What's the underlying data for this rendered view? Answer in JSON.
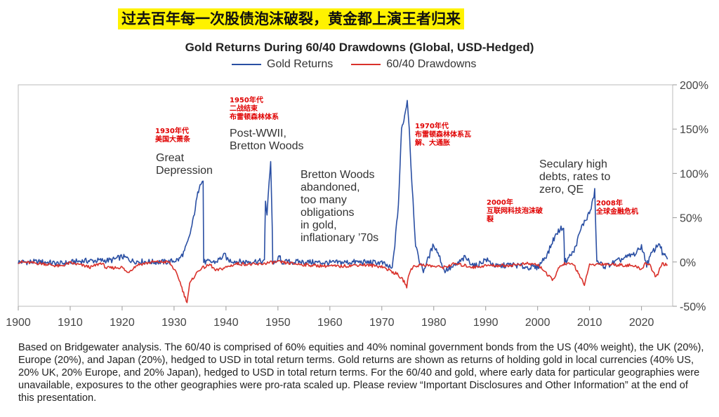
{
  "banner": "过去百年每一次股债泡沫破裂，黄金都上演王者归来",
  "footnote": "Based on Bridgewater analysis. The 60/40 is comprised of 60% equities and 40% nominal government bonds from the US (40% weight), the UK (20%), Europe (20%), and Japan (20%), hedged to USD in total return terms. Gold returns are shown as returns of holding gold in local currencies (40% US, 20% UK, 20% Europe, and 20% Japan), hedged to USD in total return terms. For the 60/40 and gold, where early data for particular geographies were unavailable, exposures to the other geographies were pro-rata scaled up. Please review “Important Disclosures and Other Information” at the end of this presentation.",
  "chart_data": {
    "type": "line",
    "title": "Gold Returns During 60/40 Drawdowns (Global, USD-Hedged)",
    "xlabel": "",
    "ylabel": "",
    "xlim": [
      1900,
      2026
    ],
    "ylim": [
      -50,
      200
    ],
    "x_ticks": [
      1900,
      1910,
      1920,
      1930,
      1940,
      1950,
      1960,
      1970,
      1980,
      1990,
      2000,
      2010,
      2020
    ],
    "y_ticks": [
      -50,
      0,
      50,
      100,
      150,
      200
    ],
    "y_tick_labels": [
      "-50%",
      "0%",
      "50%",
      "100%",
      "150%",
      "200%"
    ],
    "y_axis_side": "right",
    "grid": false,
    "legend_position": "top-center",
    "series": [
      {
        "name": "Gold Returns",
        "color": "#2a4fa3",
        "points": [
          [
            1900,
            0
          ],
          [
            1905,
            0
          ],
          [
            1908,
            -2
          ],
          [
            1912,
            1
          ],
          [
            1918,
            2
          ],
          [
            1920,
            6
          ],
          [
            1921,
            4
          ],
          [
            1922,
            1
          ],
          [
            1926,
            0
          ],
          [
            1929,
            0
          ],
          [
            1931,
            3
          ],
          [
            1932,
            12
          ],
          [
            1932.8,
            25
          ],
          [
            1933.6,
            45
          ],
          [
            1934.4,
            72
          ],
          [
            1935,
            90
          ],
          [
            1935.6,
            91
          ],
          [
            1935.7,
            0
          ],
          [
            1938,
            0
          ],
          [
            1939.9,
            8
          ],
          [
            1940.3,
            2
          ],
          [
            1943,
            0
          ],
          [
            1946,
            1
          ],
          [
            1947.4,
            0
          ],
          [
            1947.6,
            70
          ],
          [
            1947.9,
            52
          ],
          [
            1948.3,
            90
          ],
          [
            1948.6,
            115
          ],
          [
            1948.9,
            40
          ],
          [
            1949,
            0
          ],
          [
            1949.6,
            -2
          ],
          [
            1950.4,
            8
          ],
          [
            1950.5,
            0
          ],
          [
            1955,
            0
          ],
          [
            1960,
            -1
          ],
          [
            1965,
            0
          ],
          [
            1970,
            -1
          ],
          [
            1972,
            -8
          ],
          [
            1972.5,
            20
          ],
          [
            1973.2,
            65
          ],
          [
            1973.8,
            150
          ],
          [
            1974.4,
            165
          ],
          [
            1974.9,
            183
          ],
          [
            1975.3,
            150
          ],
          [
            1975.6,
            110
          ],
          [
            1976,
            70
          ],
          [
            1976.5,
            20
          ],
          [
            1977,
            5
          ],
          [
            1978,
            -10
          ],
          [
            1980,
            20
          ],
          [
            1981,
            8
          ],
          [
            1982,
            -10
          ],
          [
            1984,
            -5
          ],
          [
            1986,
            5
          ],
          [
            1988,
            -5
          ],
          [
            1990,
            3
          ],
          [
            1992,
            -5
          ],
          [
            1995,
            -3
          ],
          [
            1998,
            -6
          ],
          [
            2000,
            -6
          ],
          [
            2002,
            10
          ],
          [
            2003,
            25
          ],
          [
            2004,
            35
          ],
          [
            2005,
            40
          ],
          [
            2005.2,
            0
          ],
          [
            2007,
            12
          ],
          [
            2008.5,
            40
          ],
          [
            2009.5,
            50
          ],
          [
            2010.3,
            60
          ],
          [
            2011,
            80
          ],
          [
            2011.4,
            0
          ],
          [
            2013,
            -5
          ],
          [
            2015,
            0
          ],
          [
            2017,
            5
          ],
          [
            2019,
            10
          ],
          [
            2020,
            18
          ],
          [
            2021,
            -3
          ],
          [
            2022,
            10
          ],
          [
            2023.5,
            22
          ],
          [
            2024,
            10
          ],
          [
            2025,
            3
          ]
        ]
      },
      {
        "name": "60/40 Drawdowns",
        "color": "#d9312b",
        "points": [
          [
            1900,
            0
          ],
          [
            1905,
            -2
          ],
          [
            1908,
            -5
          ],
          [
            1910,
            -1
          ],
          [
            1914,
            -6
          ],
          [
            1916,
            -1
          ],
          [
            1917,
            -7
          ],
          [
            1920,
            -6
          ],
          [
            1921,
            -12
          ],
          [
            1923,
            -3
          ],
          [
            1926,
            0
          ],
          [
            1929,
            0
          ],
          [
            1930,
            -8
          ],
          [
            1931,
            -20
          ],
          [
            1932,
            -38
          ],
          [
            1932.5,
            -45
          ],
          [
            1933,
            -25
          ],
          [
            1934,
            -15
          ],
          [
            1935,
            -8
          ],
          [
            1937,
            -3
          ],
          [
            1938,
            -10
          ],
          [
            1940,
            -6
          ],
          [
            1942,
            -2
          ],
          [
            1946,
            -3
          ],
          [
            1948,
            -1
          ],
          [
            1950,
            0
          ],
          [
            1953,
            -2
          ],
          [
            1957,
            -4
          ],
          [
            1962,
            -5
          ],
          [
            1966,
            -3
          ],
          [
            1970,
            -5
          ],
          [
            1973,
            -14
          ],
          [
            1974.3,
            -22
          ],
          [
            1974.8,
            -28
          ],
          [
            1975.3,
            -12
          ],
          [
            1976,
            -5
          ],
          [
            1978,
            -3
          ],
          [
            1980,
            -5
          ],
          [
            1982,
            -6
          ],
          [
            1984,
            -2
          ],
          [
            1987.8,
            -6
          ],
          [
            1990,
            -4
          ],
          [
            1994,
            -4
          ],
          [
            1998,
            -2
          ],
          [
            2000,
            -3
          ],
          [
            2001,
            -8
          ],
          [
            2002,
            -16
          ],
          [
            2003,
            -20
          ],
          [
            2004,
            -8
          ],
          [
            2005,
            -2
          ],
          [
            2007,
            -3
          ],
          [
            2008.5,
            -20
          ],
          [
            2009,
            -28
          ],
          [
            2009.4,
            -15
          ],
          [
            2010,
            -4
          ],
          [
            2012,
            -2
          ],
          [
            2015,
            -3
          ],
          [
            2018,
            -4
          ],
          [
            2020.2,
            -8
          ],
          [
            2020.5,
            -2
          ],
          [
            2021.5,
            -2
          ],
          [
            2022.3,
            -12
          ],
          [
            2022.8,
            -18
          ],
          [
            2023.5,
            -8
          ],
          [
            2024,
            -2
          ],
          [
            2025,
            -3
          ]
        ]
      }
    ],
    "annotations": [
      {
        "en": [
          "Great",
          "Depression"
        ],
        "cn": [
          "1930年代",
          "美国大萧条"
        ]
      },
      {
        "en": [
          "Post-WWII,",
          "Bretton Woods"
        ],
        "cn": [
          "1950年代",
          "二战结束",
          "布雷顿森林体系"
        ]
      },
      {
        "en": [
          "Bretton Woods",
          "abandoned,",
          "too many",
          "obligations",
          "in gold,",
          "inflationary ’70s"
        ],
        "cn": []
      },
      {
        "en": [],
        "cn": [
          "1970年代",
          "布雷顿森林体系瓦",
          "解、大通胀"
        ]
      },
      {
        "en": [],
        "cn": [
          "2000年",
          "互联网科技泡沫破",
          "裂"
        ]
      },
      {
        "en": [
          "Seculary high",
          "debts, rates to",
          "zero, QE"
        ],
        "cn": []
      },
      {
        "en": [],
        "cn": [
          "2008年",
          "全球金融危机"
        ]
      }
    ]
  }
}
